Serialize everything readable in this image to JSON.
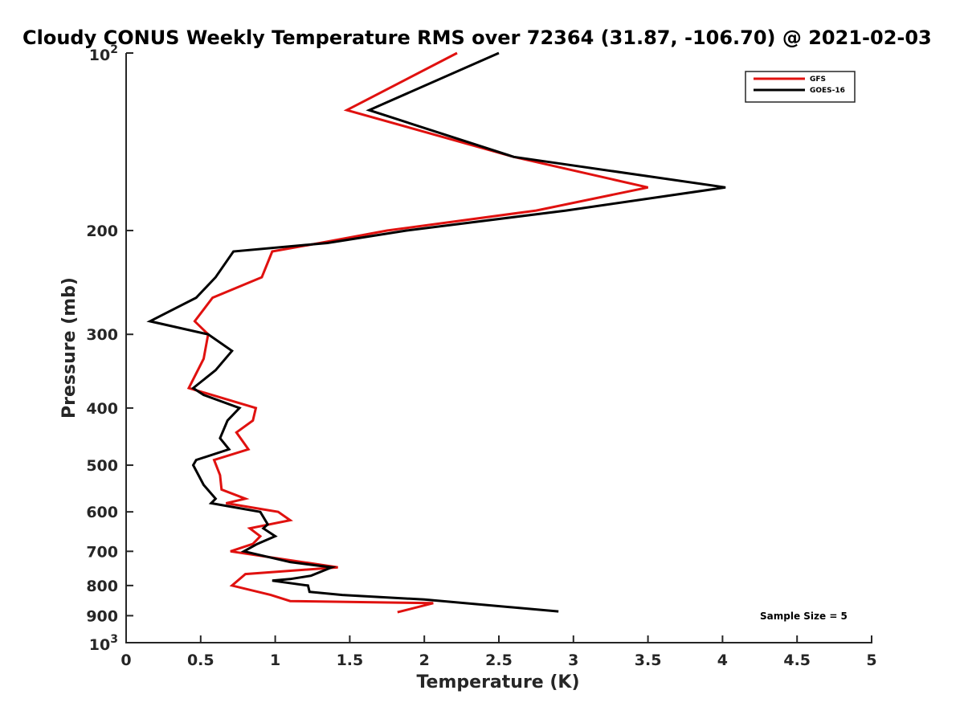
{
  "chart_data": {
    "type": "line",
    "title": "Cloudy CONUS Weekly Temperature RMS over 72364 (31.87, -106.70) @ 2021-02-03",
    "xlabel": "Temperature (K)",
    "ylabel": "Pressure (mb)",
    "xlim": [
      0,
      5
    ],
    "ylim": [
      100,
      1000
    ],
    "yscale": "log",
    "y_reversed": true,
    "grid": false,
    "legend_position": "top-right",
    "x_ticks": [
      "0",
      "0.5",
      "1",
      "1.5",
      "2",
      "2.5",
      "3",
      "3.5",
      "4",
      "4.5",
      "5"
    ],
    "y_ticks": [
      {
        "value": 100,
        "base": "10",
        "exp": "2"
      },
      {
        "value": 200,
        "label": "200"
      },
      {
        "value": 300,
        "label": "300"
      },
      {
        "value": 400,
        "label": "400"
      },
      {
        "value": 500,
        "label": "500"
      },
      {
        "value": 600,
        "label": "600"
      },
      {
        "value": 700,
        "label": "700"
      },
      {
        "value": 800,
        "label": "800"
      },
      {
        "value": 900,
        "label": "900"
      },
      {
        "value": 1000,
        "base": "10",
        "exp": "3"
      }
    ],
    "series": [
      {
        "name": "GFS",
        "color": "#e0110f",
        "points": [
          [
            2.22,
            100
          ],
          [
            1.48,
            125
          ],
          [
            2.6,
            150
          ],
          [
            3.5,
            169
          ],
          [
            2.75,
            185
          ],
          [
            1.75,
            200
          ],
          [
            1.3,
            210
          ],
          [
            0.98,
            217
          ],
          [
            0.91,
            240
          ],
          [
            0.58,
            260
          ],
          [
            0.46,
            285
          ],
          [
            0.55,
            300
          ],
          [
            0.52,
            330
          ],
          [
            0.42,
            370
          ],
          [
            0.87,
            400
          ],
          [
            0.85,
            420
          ],
          [
            0.74,
            440
          ],
          [
            0.82,
            470
          ],
          [
            0.59,
            490
          ],
          [
            0.63,
            520
          ],
          [
            0.64,
            550
          ],
          [
            0.8,
            570
          ],
          [
            0.67,
            580
          ],
          [
            1.02,
            600
          ],
          [
            1.1,
            620
          ],
          [
            0.83,
            640
          ],
          [
            0.9,
            660
          ],
          [
            0.85,
            680
          ],
          [
            0.7,
            700
          ],
          [
            1.42,
            745
          ],
          [
            0.8,
            765
          ],
          [
            0.71,
            800
          ],
          [
            0.97,
            830
          ],
          [
            1.1,
            850
          ],
          [
            2.06,
            857
          ],
          [
            1.82,
            888
          ]
        ]
      },
      {
        "name": "GOES-16",
        "color": "#000000",
        "points": [
          [
            2.5,
            100
          ],
          [
            1.63,
            125
          ],
          [
            2.6,
            150
          ],
          [
            4.02,
            169
          ],
          [
            2.95,
            185
          ],
          [
            1.88,
            200
          ],
          [
            1.35,
            210
          ],
          [
            0.72,
            217
          ],
          [
            0.6,
            240
          ],
          [
            0.47,
            260
          ],
          [
            0.16,
            285
          ],
          [
            0.55,
            300
          ],
          [
            0.71,
            320
          ],
          [
            0.6,
            345
          ],
          [
            0.45,
            370
          ],
          [
            0.52,
            380
          ],
          [
            0.76,
            400
          ],
          [
            0.68,
            420
          ],
          [
            0.63,
            450
          ],
          [
            0.69,
            470
          ],
          [
            0.47,
            490
          ],
          [
            0.45,
            500
          ],
          [
            0.52,
            540
          ],
          [
            0.6,
            570
          ],
          [
            0.57,
            580
          ],
          [
            0.9,
            600
          ],
          [
            0.95,
            630
          ],
          [
            0.92,
            640
          ],
          [
            1.0,
            660
          ],
          [
            0.88,
            680
          ],
          [
            0.79,
            700
          ],
          [
            1.1,
            730
          ],
          [
            1.38,
            745
          ],
          [
            1.24,
            770
          ],
          [
            1.1,
            780
          ],
          [
            0.98,
            785
          ],
          [
            1.22,
            800
          ],
          [
            1.23,
            820
          ],
          [
            1.45,
            830
          ],
          [
            2.0,
            845
          ],
          [
            2.9,
            885
          ]
        ]
      }
    ],
    "annotations": [
      {
        "text": "Sample Size = 5"
      }
    ]
  }
}
